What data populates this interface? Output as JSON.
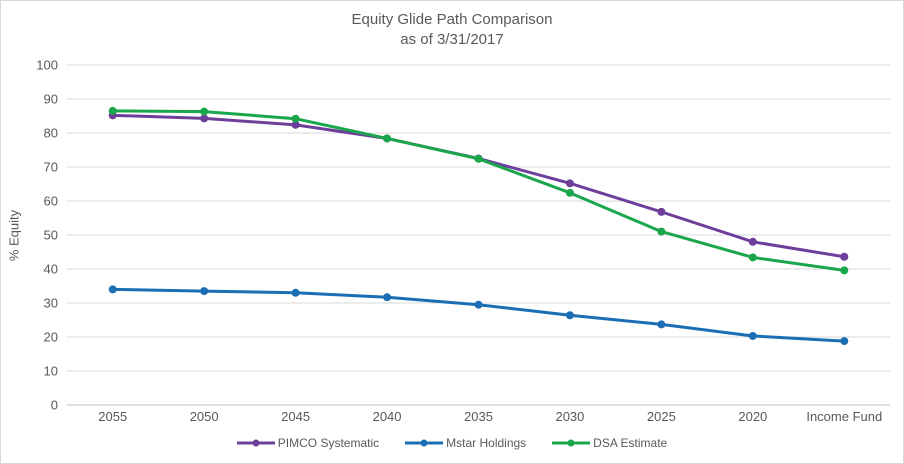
{
  "chart": {
    "title": "Equity Glide Path Comparison",
    "subtitle": "as of 3/31/2017"
  },
  "chart_data": {
    "type": "line",
    "title": "Equity Glide Path Comparison",
    "subtitle": "as of 3/31/2017",
    "categories": [
      "2055",
      "2050",
      "2045",
      "2040",
      "2035",
      "2030",
      "2025",
      "2020",
      "Income Fund"
    ],
    "series": [
      {
        "name": "PIMCO Systematic",
        "color": "#6E3E9B",
        "values": [
          85.2,
          84.3,
          82.4,
          78.4,
          72.5,
          65.2,
          56.8,
          48.0,
          43.6
        ]
      },
      {
        "name": "Mstar Holdings",
        "color": "#1B6EB4",
        "values": [
          34.0,
          33.5,
          33.0,
          31.7,
          29.5,
          26.4,
          23.7,
          20.3,
          18.8
        ]
      },
      {
        "name": "DSA Estimate",
        "color": "#1AA64B",
        "values": [
          86.5,
          86.3,
          84.2,
          78.4,
          72.4,
          62.4,
          51.0,
          43.4,
          39.6
        ]
      }
    ],
    "xlabel": "",
    "ylabel": "% Equity",
    "ylim": [
      0,
      100
    ],
    "ytick_step": 10,
    "grid": true,
    "legend_position": "bottom"
  },
  "colors": {
    "text": "#595959",
    "gridline": "#d9d9d9",
    "axis_line": "#bfbfbf",
    "border": "#d9d9d9",
    "background": "#ffffff"
  }
}
